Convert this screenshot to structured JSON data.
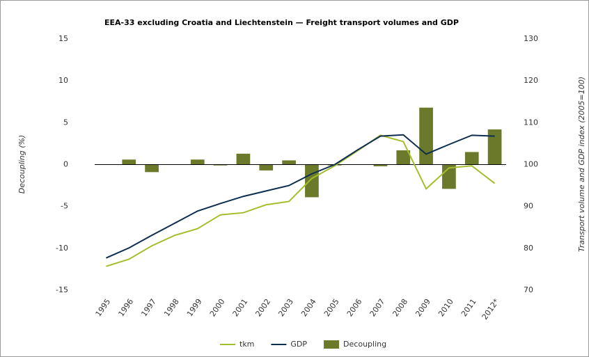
{
  "chart_data": {
    "type": "bar-line",
    "title": "EEA-33 excluding Croatia and Liechtenstein — Freight transport volumes and GDP",
    "ylabel": "Decoupling (%)",
    "y2label": "Transport volume and GDP index (2005=100)",
    "categories": [
      "1995",
      "1996",
      "1997",
      "1998",
      "1999",
      "2000",
      "2001",
      "2002",
      "2003",
      "2004",
      "2005",
      "2006",
      "2007",
      "2008",
      "2009",
      "2010",
      "2011",
      "2012*"
    ],
    "ylim": [
      -15,
      15
    ],
    "yticks": [
      -15,
      -10,
      -5,
      0,
      5,
      10,
      15
    ],
    "y2lim": [
      70,
      130
    ],
    "y2ticks": [
      70,
      80,
      90,
      100,
      110,
      120,
      130
    ],
    "series": [
      {
        "name": "tkm",
        "type": "line",
        "axis": "y2",
        "color": "#a3be2c",
        "values": [
          75.7,
          77.4,
          80.6,
          83.1,
          84.7,
          88.0,
          88.5,
          90.4,
          91.2,
          96.7,
          99.7,
          103.3,
          107.0,
          105.5,
          94.2,
          99.2,
          99.7,
          95.5
        ]
      },
      {
        "name": "GDP",
        "type": "line",
        "axis": "y2",
        "color": "#0d2d4f",
        "values": [
          77.7,
          80.1,
          83.1,
          86.0,
          88.9,
          90.7,
          92.4,
          93.7,
          95.0,
          97.8,
          100,
          103.5,
          106.8,
          107.1,
          102.5,
          104.8,
          107.0,
          106.8
        ]
      },
      {
        "name": "Decoupling",
        "type": "bar",
        "axis": "y",
        "color": "#6b7a2a",
        "values": [
          null,
          0.6,
          -0.9,
          0,
          0.6,
          -0.1,
          1.3,
          -0.7,
          0.5,
          -3.9,
          -0.1,
          0,
          -0.2,
          1.7,
          6.8,
          -2.9,
          1.5,
          4.2
        ]
      }
    ]
  }
}
